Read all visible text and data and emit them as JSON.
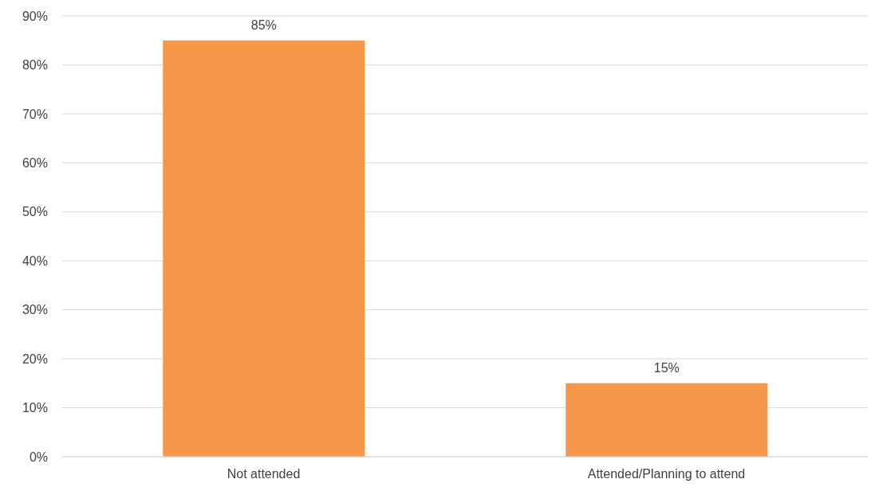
{
  "chart_data": {
    "type": "bar",
    "categories": [
      "Not attended",
      "Attended/Planning to attend"
    ],
    "values": [
      85,
      15
    ],
    "color": "#f79646",
    "value_labels": [
      "85%",
      "15%"
    ],
    "ylim": [
      0,
      90
    ],
    "yticks": [
      {
        "value": 0,
        "label": "0%"
      },
      {
        "value": 10,
        "label": "10%"
      },
      {
        "value": 20,
        "label": "20%"
      },
      {
        "value": 30,
        "label": "30%"
      },
      {
        "value": 40,
        "label": "40%"
      },
      {
        "value": 50,
        "label": "50%"
      },
      {
        "value": 60,
        "label": "60%"
      },
      {
        "value": 70,
        "label": "70%"
      },
      {
        "value": 80,
        "label": "80%"
      },
      {
        "value": 90,
        "label": "90%"
      }
    ],
    "grid": "y",
    "legend": false
  }
}
